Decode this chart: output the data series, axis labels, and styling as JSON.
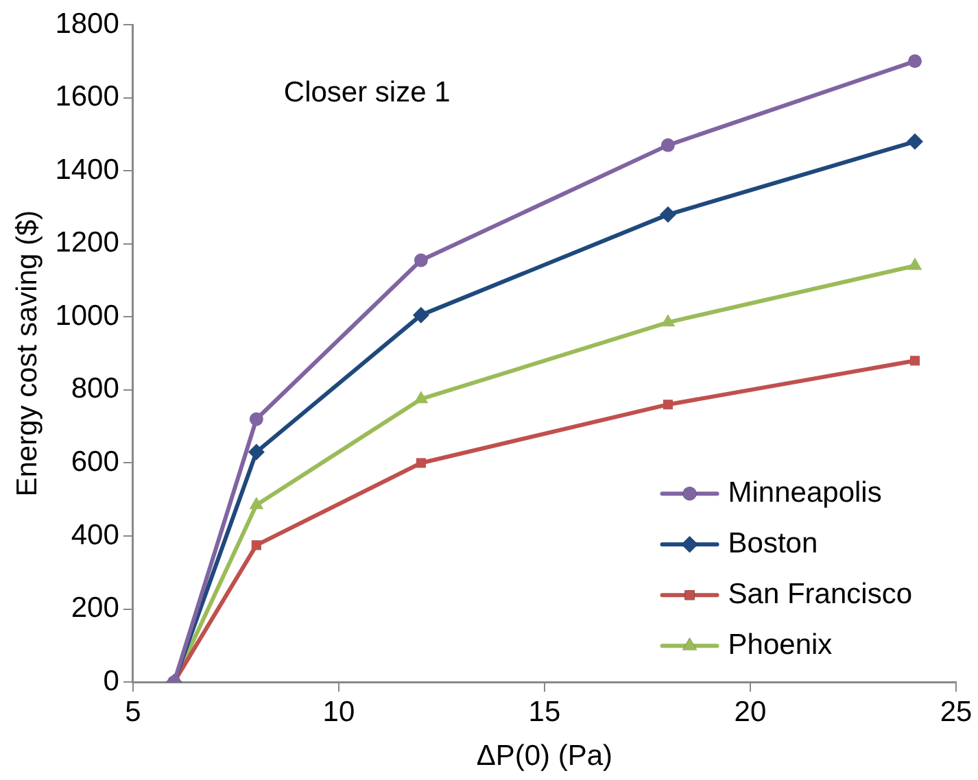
{
  "chart_data": {
    "type": "line",
    "xlabel": "ΔP(0) (Pa)",
    "ylabel": "Energy cost saving ($)",
    "annotations": [
      "Closer size 1"
    ],
    "x": [
      6,
      8,
      12,
      18,
      24
    ],
    "series": [
      {
        "name": "Minneapolis",
        "color": "#8064a2",
        "marker": "circle",
        "values": [
          0,
          720,
          1155,
          1470,
          1700
        ]
      },
      {
        "name": "Boston",
        "color": "#1f497d",
        "marker": "diamond",
        "values": [
          0,
          630,
          1005,
          1280,
          1480
        ]
      },
      {
        "name": "San Francisco",
        "color": "#c0504d",
        "marker": "square",
        "values": [
          0,
          375,
          600,
          760,
          880
        ]
      },
      {
        "name": "Phoenix",
        "color": "#9bbb59",
        "marker": "triangle",
        "values": [
          0,
          485,
          775,
          985,
          1140
        ]
      }
    ],
    "xlim": [
      5,
      25
    ],
    "xticks": [
      5,
      10,
      15,
      20,
      25
    ],
    "ylim": [
      0,
      1800
    ],
    "yticks": [
      0,
      200,
      400,
      600,
      800,
      1000,
      1200,
      1400,
      1600,
      1800
    ],
    "grid": false,
    "legend": "bottom right"
  }
}
